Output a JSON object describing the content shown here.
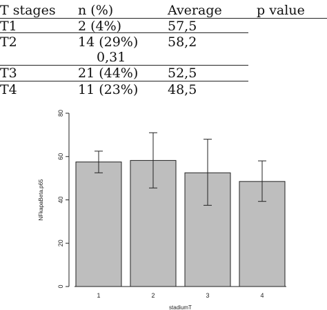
{
  "table": {
    "headers": [
      "T stages",
      "n (%)",
      "Average",
      "p value"
    ],
    "rows": [
      {
        "stage": "T1",
        "n": "2 (4%)",
        "avg": "57,5"
      },
      {
        "stage": "T2",
        "n": "14 (29%)",
        "avg": "58,2"
      },
      {
        "stage": "T3",
        "n": "21 (44%)",
        "avg": "52,5"
      },
      {
        "stage": "T4",
        "n": "11 (23%)",
        "avg": "48,5"
      }
    ],
    "p_value": "0,31"
  },
  "chart_data": {
    "type": "bar",
    "categories": [
      "1",
      "2",
      "3",
      "4"
    ],
    "values": [
      57.5,
      58.2,
      52.5,
      48.5
    ],
    "error_low": [
      52.5,
      45.5,
      37.5,
      39.3
    ],
    "error_high": [
      62.5,
      71.0,
      68.0,
      58.0
    ],
    "xlabel": "stadiumT",
    "ylabel": "NFkapaBeta.p65",
    "ylim": [
      0,
      80
    ],
    "yticks": [
      0,
      20,
      40,
      60,
      80
    ],
    "bar_color": "#bebebe",
    "grid": false
  }
}
